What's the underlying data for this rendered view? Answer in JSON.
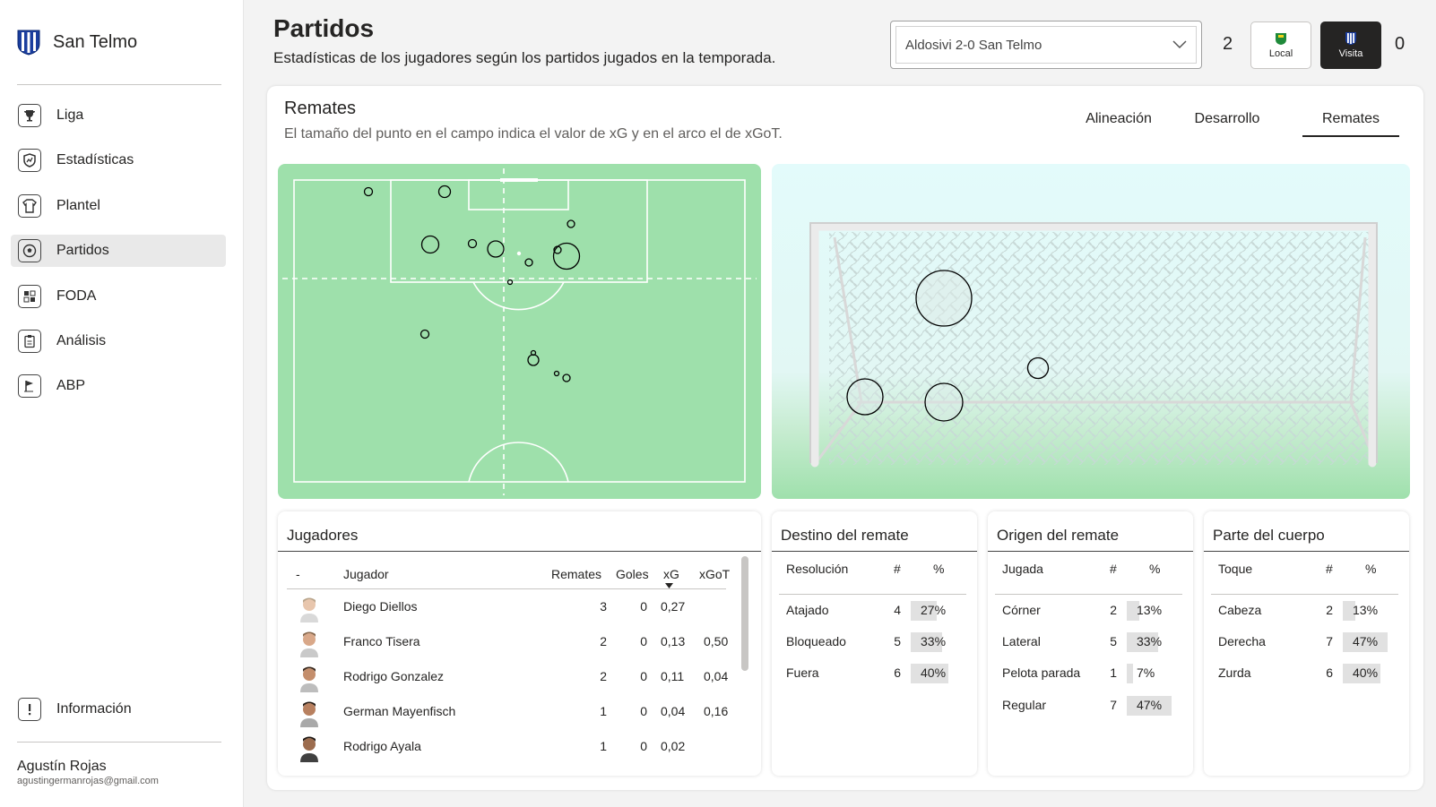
{
  "brand": {
    "name": "San Telmo"
  },
  "nav": [
    {
      "label": "Liga",
      "icon": "trophy-icon"
    },
    {
      "label": "Estadísticas",
      "icon": "shield-chart-icon"
    },
    {
      "label": "Plantel",
      "icon": "jersey-icon"
    },
    {
      "label": "Partidos",
      "icon": "soccer-ball-icon",
      "active": true
    },
    {
      "label": "FODA",
      "icon": "grid-icon"
    },
    {
      "label": "Análisis",
      "icon": "clipboard-icon"
    },
    {
      "label": "ABP",
      "icon": "corner-flag-icon"
    }
  ],
  "info": {
    "label": "Información",
    "icon": "info-icon"
  },
  "user": {
    "name": "Agustín Rojas",
    "email": "agustingermanrojas@gmail.com"
  },
  "header": {
    "title": "Partidos",
    "subtitle": "Estadísticas de los jugadores según los partidos jugados en la temporada.",
    "match": "Aldosivi 2-0 San Telmo",
    "score_local": "2",
    "score_visita": "0",
    "local_label": "Local",
    "visita_label": "Visita"
  },
  "section": {
    "title": "Remates",
    "description": "El tamaño del punto en el campo indica el valor de xG y en el arco el de xGoT."
  },
  "tabs": [
    {
      "label": "Alineación"
    },
    {
      "label": "Desarrollo"
    },
    {
      "label": "Remates",
      "active": true
    }
  ],
  "colors": {
    "pitch": "#9ee0ab",
    "accent_dark": "#252423",
    "bar": "#e1e1e1"
  },
  "players": {
    "title": "Jugadores",
    "headers": {
      "idx": "-",
      "name": "Jugador",
      "shots": "Remates",
      "goals": "Goles",
      "xg": "xG",
      "xgot": "xGoT"
    },
    "rows": [
      {
        "name": "Diego Diellos",
        "shots": "3",
        "goals": "0",
        "xg": "0,27",
        "xgot": ""
      },
      {
        "name": "Franco Tisera",
        "shots": "2",
        "goals": "0",
        "xg": "0,13",
        "xgot": "0,50"
      },
      {
        "name": "Rodrigo Gonzalez",
        "shots": "2",
        "goals": "0",
        "xg": "0,11",
        "xgot": "0,04"
      },
      {
        "name": "German Mayenfisch",
        "shots": "1",
        "goals": "0",
        "xg": "0,04",
        "xgot": "0,16"
      },
      {
        "name": "Rodrigo Ayala",
        "shots": "1",
        "goals": "0",
        "xg": "0,02",
        "xgot": ""
      }
    ]
  },
  "destino": {
    "title": "Destino del remate",
    "headers": {
      "k": "Resolución",
      "n": "#",
      "p": "%"
    },
    "rows": [
      {
        "k": "Atajado",
        "n": "4",
        "p": "27%",
        "v": 0.27
      },
      {
        "k": "Bloqueado",
        "n": "5",
        "p": "33%",
        "v": 0.33
      },
      {
        "k": "Fuera",
        "n": "6",
        "p": "40%",
        "v": 0.4
      }
    ]
  },
  "origen": {
    "title": "Origen del remate",
    "headers": {
      "k": "Jugada",
      "n": "#",
      "p": "%"
    },
    "rows": [
      {
        "k": "Córner",
        "n": "2",
        "p": "13%",
        "v": 0.13
      },
      {
        "k": "Lateral",
        "n": "5",
        "p": "33%",
        "v": 0.33
      },
      {
        "k": "Pelota parada",
        "n": "1",
        "p": "7%",
        "v": 0.07
      },
      {
        "k": "Regular",
        "n": "7",
        "p": "47%",
        "v": 0.47
      }
    ]
  },
  "cuerpo": {
    "title": "Parte del cuerpo",
    "headers": {
      "k": "Toque",
      "n": "#",
      "p": "%"
    },
    "rows": [
      {
        "k": "Cabeza",
        "n": "2",
        "p": "13%",
        "v": 0.13
      },
      {
        "k": "Derecha",
        "n": "7",
        "p": "47%",
        "v": 0.47
      },
      {
        "k": "Zurda",
        "n": "6",
        "p": "40%",
        "v": 0.4
      }
    ]
  }
}
